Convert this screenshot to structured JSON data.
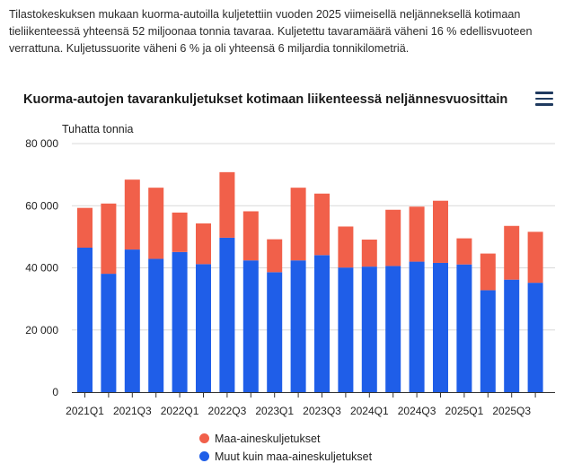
{
  "intro_text": "Tilastokeskuksen mukaan kuorma-autoilla kuljetettiin vuoden 2025 viimeisellä neljänneksellä kotimaan tieliikenteessä yhteensä 52 miljoonaa tonnia tavaraa. Kuljetettu tavaramäärä väheni 16 % edellisvuoteen verrattuna. Kuljetussuorite väheni 6 % ja oli yhteensä 6 miljardia tonnikilometriä.",
  "menu_icon": "hamburger-menu-icon",
  "colors": {
    "maa": "#f1604a",
    "muut": "#1f5ee8",
    "grid": "#d9d9d9",
    "axis": "#333333"
  },
  "chart_data": {
    "type": "bar",
    "stacked": true,
    "title": "Kuorma-autojen tavarankuljetukset kotimaan liikenteessä neljännesvuosittain",
    "ylabel": "Tuhatta tonnia",
    "xlabel": "",
    "ylim": [
      0,
      80000
    ],
    "yticks": [
      0,
      20000,
      40000,
      60000,
      80000
    ],
    "ytick_labels": [
      "0",
      "20 000",
      "40 000",
      "60 000",
      "80 000"
    ],
    "grid": true,
    "legend_position": "bottom",
    "categories": [
      "2021Q1",
      "2021Q2",
      "2021Q3",
      "2021Q4",
      "2022Q1",
      "2022Q2",
      "2022Q3",
      "2022Q4",
      "2023Q1",
      "2023Q2",
      "2023Q3",
      "2023Q4",
      "2024Q1",
      "2024Q2",
      "2024Q3",
      "2024Q4",
      "2025Q1",
      "2025Q2",
      "2025Q3",
      "2025Q4"
    ],
    "xtick_labels": [
      "2021Q1",
      "",
      "2021Q3",
      "",
      "2022Q1",
      "",
      "2022Q3",
      "",
      "2023Q1",
      "",
      "2023Q3",
      "",
      "2024Q1",
      "",
      "2024Q3",
      "",
      "2025Q1",
      "",
      "2025Q3",
      ""
    ],
    "series": [
      {
        "name": "Maa-aineskuljetukset",
        "color": "#f1604a",
        "values": [
          12800,
          22600,
          22500,
          22900,
          12700,
          13100,
          21100,
          15800,
          10600,
          23400,
          19800,
          13200,
          8700,
          18100,
          17700,
          20000,
          8400,
          11800,
          17300,
          16400
        ]
      },
      {
        "name": "Muut kuin maa-aineskuljetukset",
        "color": "#1f5ee8",
        "values": [
          46500,
          38100,
          45900,
          42900,
          45100,
          41200,
          49700,
          42400,
          38600,
          42400,
          44100,
          40100,
          40400,
          40600,
          42000,
          41600,
          41100,
          32800,
          36200,
          35200
        ]
      }
    ]
  }
}
